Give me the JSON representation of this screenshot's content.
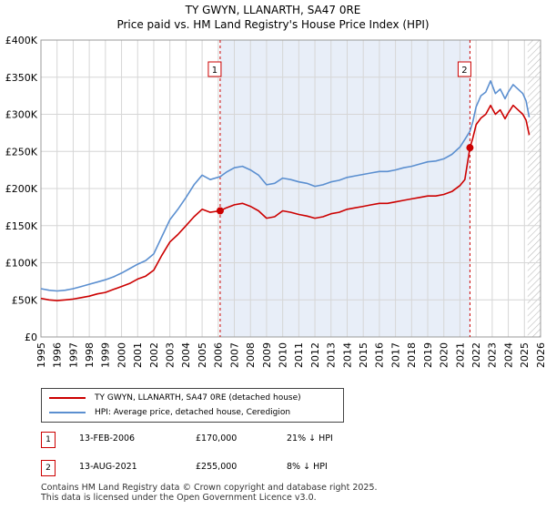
{
  "header": {
    "title": "TY GWYN, LLANARTH, SA47 0RE",
    "subtitle": "Price paid vs. HM Land Registry's House Price Index (HPI)"
  },
  "chart_data": {
    "type": "line",
    "title": "TY GWYN, LLANARTH, SA47 0RE",
    "subtitle": "Price paid vs. HM Land Registry's House Price Index (HPI)",
    "xlabel": "",
    "ylabel": "",
    "xlim": [
      1995,
      2026
    ],
    "ylim": [
      0,
      400000
    ],
    "x_ticks": [
      1995,
      1996,
      1997,
      1998,
      1999,
      2000,
      2001,
      2002,
      2003,
      2004,
      2005,
      2006,
      2007,
      2008,
      2009,
      2010,
      2011,
      2012,
      2013,
      2014,
      2015,
      2016,
      2017,
      2018,
      2019,
      2020,
      2021,
      2022,
      2023,
      2024,
      2025,
      2026
    ],
    "y_ticks": [
      0,
      50000,
      100000,
      150000,
      200000,
      250000,
      300000,
      350000,
      400000
    ],
    "y_tick_labels": [
      "£0",
      "£50K",
      "£100K",
      "£150K",
      "£200K",
      "£250K",
      "£300K",
      "£350K",
      "£400K"
    ],
    "grid": true,
    "series": [
      {
        "name": "TY GWYN, LLANARTH, SA47 0RE (detached house)",
        "color": "#cc0000",
        "x": [
          1995.0,
          1995.5,
          1996.0,
          1996.5,
          1997.0,
          1997.5,
          1998.0,
          1998.5,
          1999.0,
          1999.5,
          2000.0,
          2000.5,
          2001.0,
          2001.5,
          2002.0,
          2002.5,
          2003.0,
          2003.5,
          2004.0,
          2004.5,
          2005.0,
          2005.5,
          2006.12,
          2006.5,
          2007.0,
          2007.5,
          2008.0,
          2008.5,
          2009.0,
          2009.5,
          2010.0,
          2010.5,
          2011.0,
          2011.5,
          2012.0,
          2012.5,
          2013.0,
          2013.5,
          2014.0,
          2014.5,
          2015.0,
          2015.5,
          2016.0,
          2016.5,
          2017.0,
          2017.5,
          2018.0,
          2018.5,
          2019.0,
          2019.5,
          2020.0,
          2020.5,
          2021.0,
          2021.3,
          2021.62,
          2021.8,
          2022.0,
          2022.3,
          2022.6,
          2022.9,
          2023.2,
          2023.5,
          2023.8,
          2024.0,
          2024.3,
          2024.6,
          2024.9,
          2025.1,
          2025.3
        ],
        "values": [
          52000,
          50000,
          49000,
          50000,
          51000,
          53000,
          55000,
          58000,
          60000,
          64000,
          68000,
          72000,
          78000,
          82000,
          90000,
          110000,
          128000,
          138000,
          150000,
          162000,
          172000,
          168000,
          170000,
          174000,
          178000,
          180000,
          176000,
          170000,
          160000,
          162000,
          170000,
          168000,
          165000,
          163000,
          160000,
          162000,
          166000,
          168000,
          172000,
          174000,
          176000,
          178000,
          180000,
          180000,
          182000,
          184000,
          186000,
          188000,
          190000,
          190000,
          192000,
          196000,
          204000,
          212000,
          255000,
          268000,
          286000,
          295000,
          300000,
          312000,
          300000,
          306000,
          294000,
          302000,
          312000,
          306000,
          300000,
          292000,
          272000
        ]
      },
      {
        "name": "HPI: Average price, detached house, Ceredigion",
        "color": "#5b8fd0",
        "x": [
          1995.0,
          1995.5,
          1996.0,
          1996.5,
          1997.0,
          1997.5,
          1998.0,
          1998.5,
          1999.0,
          1999.5,
          2000.0,
          2000.5,
          2001.0,
          2001.5,
          2002.0,
          2002.5,
          2003.0,
          2003.5,
          2004.0,
          2004.5,
          2005.0,
          2005.5,
          2006.12,
          2006.5,
          2007.0,
          2007.5,
          2008.0,
          2008.5,
          2009.0,
          2009.5,
          2010.0,
          2010.5,
          2011.0,
          2011.5,
          2012.0,
          2012.5,
          2013.0,
          2013.5,
          2014.0,
          2014.5,
          2015.0,
          2015.5,
          2016.0,
          2016.5,
          2017.0,
          2017.5,
          2018.0,
          2018.5,
          2019.0,
          2019.5,
          2020.0,
          2020.5,
          2021.0,
          2021.3,
          2021.62,
          2021.8,
          2022.0,
          2022.3,
          2022.6,
          2022.9,
          2023.2,
          2023.5,
          2023.8,
          2024.0,
          2024.3,
          2024.6,
          2024.9,
          2025.1,
          2025.3
        ],
        "values": [
          65000,
          63000,
          62000,
          63000,
          65000,
          68000,
          71000,
          74000,
          77000,
          81000,
          86000,
          92000,
          98000,
          103000,
          112000,
          135000,
          158000,
          172000,
          188000,
          205000,
          218000,
          212000,
          216000,
          222000,
          228000,
          230000,
          225000,
          218000,
          205000,
          207000,
          214000,
          212000,
          209000,
          207000,
          203000,
          205000,
          209000,
          211000,
          215000,
          217000,
          219000,
          221000,
          223000,
          223000,
          225000,
          228000,
          230000,
          233000,
          236000,
          237000,
          240000,
          246000,
          256000,
          266000,
          277000,
          290000,
          310000,
          325000,
          330000,
          345000,
          328000,
          334000,
          321000,
          330000,
          340000,
          334000,
          328000,
          318000,
          296000
        ]
      }
    ],
    "annotations": [
      {
        "label": "1",
        "x": 2006.12,
        "value": 170000,
        "series": 0
      },
      {
        "label": "2",
        "x": 2021.62,
        "value": 255000,
        "series": 0
      }
    ],
    "future_hatch_from": 2025.2,
    "shaded_span": [
      2006.12,
      2021.62
    ]
  },
  "legend": {
    "items": [
      {
        "label": "TY GWYN, LLANARTH, SA47 0RE (detached house)",
        "color": "#cc0000"
      },
      {
        "label": "HPI: Average price, detached house, Ceredigion",
        "color": "#5b8fd0"
      }
    ]
  },
  "transactions": [
    {
      "num": "1",
      "date": "13-FEB-2006",
      "price": "£170,000",
      "hpi": "21% ↓ HPI"
    },
    {
      "num": "2",
      "date": "13-AUG-2021",
      "price": "£255,000",
      "hpi": "8% ↓ HPI"
    }
  ],
  "footer": {
    "line1": "Contains HM Land Registry data © Crown copyright and database right 2025.",
    "line2": "This data is licensed under the Open Government Licence v3.0."
  }
}
